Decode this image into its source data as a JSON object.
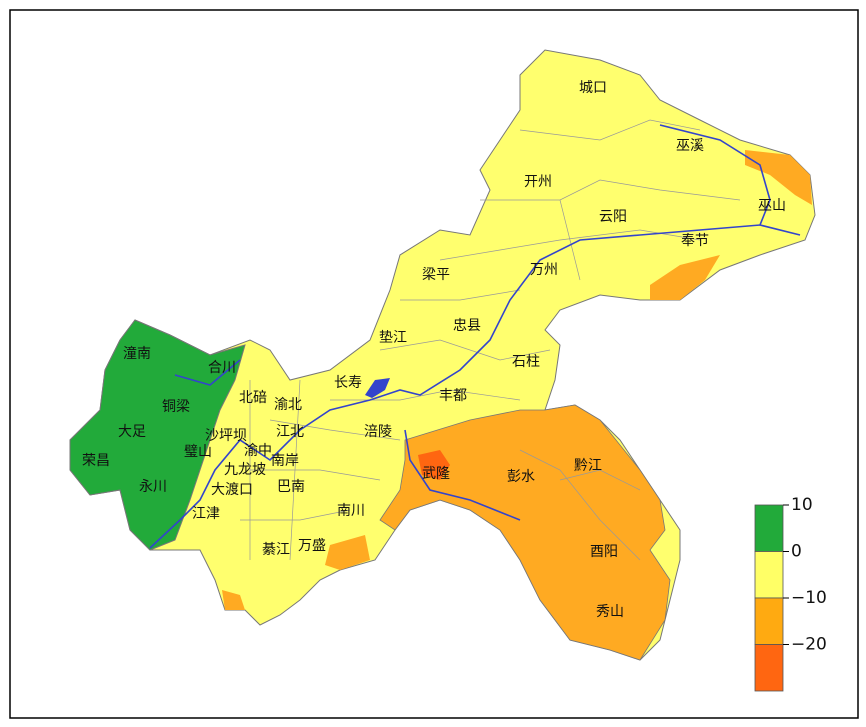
{
  "map": {
    "labels": [
      "城口",
      "巫溪",
      "开州",
      "云阳",
      "巫山",
      "奉节",
      "梁平",
      "万州",
      "垫江",
      "忠县",
      "石柱",
      "潼南",
      "合川",
      "长寿",
      "铜梁",
      "北碚",
      "渝北",
      "丰都",
      "大足",
      "沙坪坝",
      "江北",
      "涪陵",
      "荣昌",
      "璧山",
      "渝中",
      "南岸",
      "武隆",
      "彭水",
      "黔江",
      "九龙坡",
      "永川",
      "大渡口",
      "巴南",
      "江津",
      "南川",
      "綦江",
      "万盛",
      "酉阳",
      "秀山"
    ],
    "legend": {
      "colors": [
        "#22aa3a",
        "#ffff66",
        "#ffaa11",
        "#ff6611"
      ],
      "ticks": [
        10,
        0,
        {
          "value": -10,
          "label": "−10"
        },
        {
          "value": -20,
          "label": "−20"
        }
      ]
    }
  }
}
